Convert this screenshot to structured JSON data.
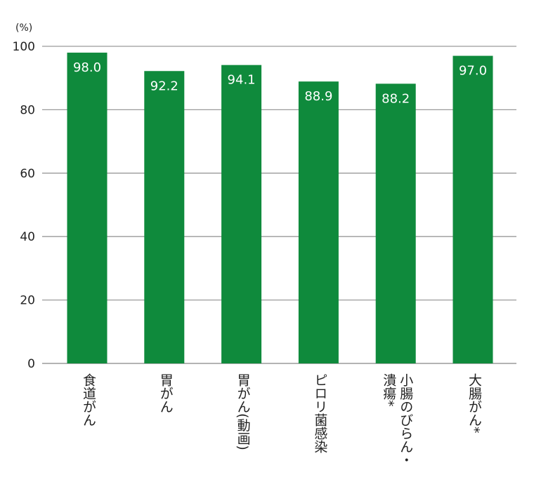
{
  "chart_data": {
    "type": "bar",
    "unit_label": "(%)",
    "categories": [
      "食道がん",
      "胃がん",
      "胃がん(動画)",
      "ピロリ菌感染",
      "小腸のびらん・潰瘍*",
      "大腸がん*"
    ],
    "values": [
      98.0,
      92.2,
      94.1,
      88.9,
      88.2,
      97.0
    ],
    "value_labels": [
      "98.0",
      "92.2",
      "94.1",
      "88.9",
      "88.2",
      "97.0"
    ],
    "y_ticks": [
      0,
      20,
      40,
      60,
      80,
      100
    ],
    "ylim": [
      0,
      100
    ],
    "grid": true,
    "bar_color": "#0f8a3c",
    "grid_color": "#9a9a9a"
  }
}
